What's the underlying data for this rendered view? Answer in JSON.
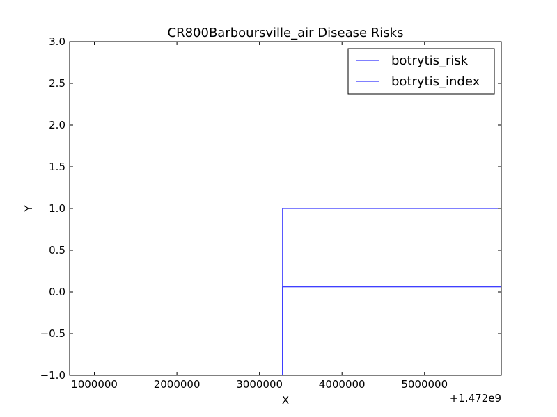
{
  "chart_data": {
    "type": "line",
    "title": "CR800Barboursville_air Disease Risks",
    "xlabel": "X",
    "ylabel": "Y",
    "x_offset_label": "+1.472e9",
    "xlim": [
      700000,
      5930000
    ],
    "ylim": [
      -1.0,
      3.0
    ],
    "x_ticks": [
      {
        "value": 1000000,
        "label": "1000000"
      },
      {
        "value": 2000000,
        "label": "2000000"
      },
      {
        "value": 3000000,
        "label": "3000000"
      },
      {
        "value": 4000000,
        "label": "4000000"
      },
      {
        "value": 5000000,
        "label": "5000000"
      }
    ],
    "y_ticks": [
      {
        "value": 3.0,
        "label": "3.0"
      },
      {
        "value": 2.5,
        "label": "2.5"
      },
      {
        "value": 2.0,
        "label": "2.0"
      },
      {
        "value": 1.5,
        "label": "1.5"
      },
      {
        "value": 1.0,
        "label": "1.0"
      },
      {
        "value": 0.5,
        "label": "0.5"
      },
      {
        "value": 0.0,
        "label": "0.0"
      },
      {
        "value": -0.5,
        "label": "−0.5"
      },
      {
        "value": -1.0,
        "label": "−1.0"
      }
    ],
    "grid": false,
    "legend_position": "top-right",
    "series": [
      {
        "name": "botrytis_risk",
        "color": "#0000ff",
        "x": [
          700000,
          3280000,
          3280000,
          5930000
        ],
        "y": [
          -1.0,
          -1.0,
          1.0,
          1.0
        ]
      },
      {
        "name": "botrytis_index",
        "color": "#0000ff",
        "x": [
          700000,
          3280000,
          3280000,
          5930000
        ],
        "y": [
          -1.0,
          -1.0,
          0.06,
          0.06
        ]
      }
    ]
  }
}
